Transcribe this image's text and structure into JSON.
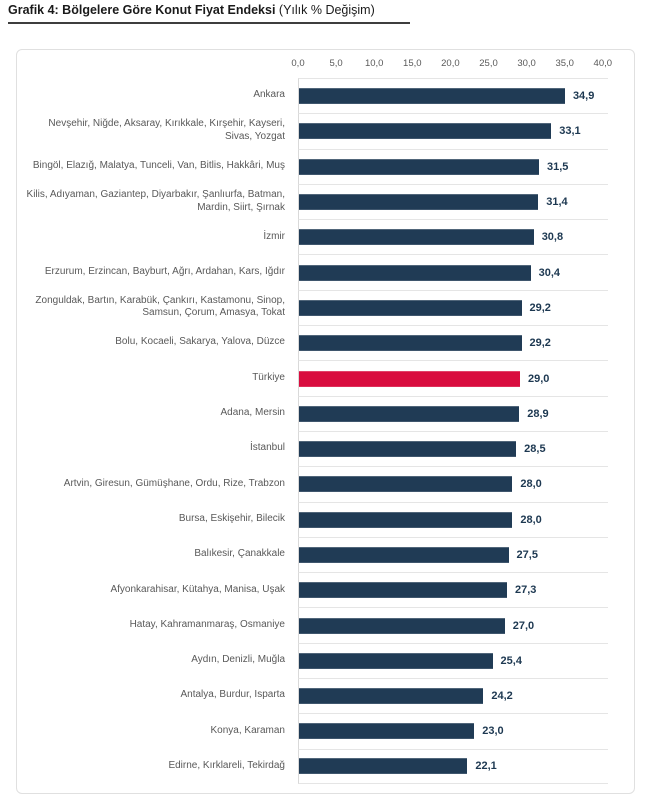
{
  "page": {
    "title_bold": "Grafik 4: Bölgelere Göre Konut Fiyat Endeksi",
    "title_normal": " (Yılık % Değişim)"
  },
  "chart_data": {
    "type": "bar",
    "orientation": "horizontal",
    "title": "Grafik 4: Bölgelere Göre Konut Fiyat Endeksi (Yılık % Değişim)",
    "xlim": [
      0,
      40
    ],
    "x_ticks": [
      0,
      5,
      10,
      15,
      20,
      25,
      30,
      35,
      40
    ],
    "x_tick_labels": [
      "0,0",
      "5,0",
      "10,0",
      "15,0",
      "20,0",
      "25,0",
      "30,0",
      "35,0",
      "40,0"
    ],
    "grid": false,
    "legend": false,
    "bar_color": "#203b55",
    "highlight_color": "#d90d3f",
    "highlight_index": 8,
    "categories": [
      "Ankara",
      "Nevşehir, Niğde, Aksaray, Kırıkkale, Kırşehir, Kayseri, Sivas, Yozgat",
      "Bingöl, Elazığ, Malatya, Tunceli, Van, Bitlis, Hakkâri, Muş",
      "Kilis, Adıyaman, Gaziantep, Diyarbakır, Şanlıurfa, Batman, Mardin, Siirt, Şırnak",
      "İzmir",
      "Erzurum, Erzincan, Bayburt, Ağrı, Ardahan, Kars, Iğdır",
      "Zonguldak, Bartın, Karabük, Çankırı, Kastamonu, Sinop, Samsun, Çorum, Amasya, Tokat",
      "Bolu, Kocaeli, Sakarya, Yalova, Düzce",
      "Türkiye",
      "Adana, Mersin",
      "İstanbul",
      "Artvin, Giresun, Gümüşhane, Ordu, Rize, Trabzon",
      "Bursa, Eskişehir, Bilecik",
      "Balıkesir, Çanakkale",
      "Afyonkarahisar, Kütahya, Manisa, Uşak",
      "Hatay, Kahramanmaraş, Osmaniye",
      "Aydın, Denizli, Muğla",
      "Antalya, Burdur, Isparta",
      "Konya, Karaman",
      "Edirne, Kırklareli, Tekirdağ"
    ],
    "values": [
      34.9,
      33.1,
      31.5,
      31.4,
      30.8,
      30.4,
      29.2,
      29.2,
      29.0,
      28.9,
      28.5,
      28.0,
      28.0,
      27.5,
      27.3,
      27.0,
      25.4,
      24.2,
      23.0,
      22.1
    ],
    "value_labels": [
      "34,9",
      "33,1",
      "31,5",
      "31,4",
      "30,8",
      "30,4",
      "29,2",
      "29,2",
      "29,0",
      "28,9",
      "28,5",
      "28,0",
      "28,0",
      "27,5",
      "27,3",
      "27,0",
      "25,4",
      "24,2",
      "23,0",
      "22,1"
    ]
  }
}
